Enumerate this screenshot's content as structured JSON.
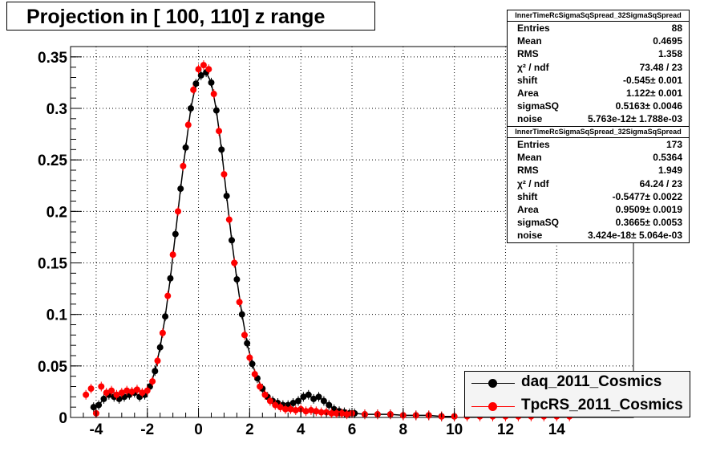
{
  "title": "Projection in [ 100, 110] z range",
  "chart_data": {
    "type": "scatter",
    "xlim": [
      -5,
      17
    ],
    "ylim": [
      0,
      0.36
    ],
    "grid": true,
    "x_ticks": [
      -4,
      -2,
      0,
      2,
      4,
      6,
      8,
      10,
      12,
      14
    ],
    "x_tick_labels": [
      "-4",
      "-2",
      "0",
      "2",
      "4",
      "6",
      "8",
      "10",
      "12",
      "14"
    ],
    "y_ticks": [
      0,
      0.05,
      0.1,
      0.15,
      0.2,
      0.25,
      0.3,
      0.35
    ],
    "y_tick_labels": [
      "0",
      "0.05",
      "0.1",
      "0.15",
      "0.2",
      "0.25",
      "0.3",
      "0.35"
    ],
    "legend_position": "bottom-right",
    "series": [
      {
        "name": "daq_2011_Cosmics",
        "color": "#000000",
        "x": [
          -4.1,
          -3.9,
          -3.7,
          -3.5,
          -3.3,
          -3.1,
          -2.9,
          -2.7,
          -2.5,
          -2.3,
          -2.1,
          -1.9,
          -1.7,
          -1.5,
          -1.3,
          -1.1,
          -0.9,
          -0.7,
          -0.5,
          -0.3,
          -0.1,
          0.1,
          0.3,
          0.5,
          0.7,
          0.9,
          1.1,
          1.3,
          1.5,
          1.7,
          1.9,
          2.1,
          2.3,
          2.5,
          2.7,
          2.9,
          3.1,
          3.3,
          3.5,
          3.7,
          3.9,
          4.1,
          4.3,
          4.5,
          4.7,
          4.9,
          5.1,
          5.3,
          5.5,
          5.7,
          5.9,
          6.1,
          6.5,
          7.0,
          7.5,
          8.0,
          8.5,
          9.0,
          9.5,
          10.0
        ],
        "y": [
          0.01,
          0.012,
          0.018,
          0.022,
          0.02,
          0.018,
          0.02,
          0.022,
          0.024,
          0.02,
          0.022,
          0.03,
          0.045,
          0.068,
          0.098,
          0.135,
          0.178,
          0.222,
          0.262,
          0.3,
          0.324,
          0.332,
          0.335,
          0.325,
          0.298,
          0.26,
          0.215,
          0.172,
          0.134,
          0.1,
          0.072,
          0.052,
          0.038,
          0.028,
          0.02,
          0.016,
          0.014,
          0.012,
          0.012,
          0.014,
          0.016,
          0.02,
          0.022,
          0.018,
          0.02,
          0.016,
          0.012,
          0.008,
          0.006,
          0.005,
          0.004,
          0.004,
          0.003,
          0.003,
          0.003,
          0.002,
          0.002,
          0.002,
          0.001,
          0.001
        ]
      },
      {
        "name": "TpcRS_2011_Cosmics",
        "color": "#ff0000",
        "x": [
          -4.4,
          -4.2,
          -4.0,
          -3.8,
          -3.6,
          -3.4,
          -3.2,
          -3.0,
          -2.8,
          -2.6,
          -2.4,
          -2.2,
          -2.0,
          -1.8,
          -1.6,
          -1.4,
          -1.2,
          -1.0,
          -0.8,
          -0.6,
          -0.4,
          -0.2,
          0.0,
          0.2,
          0.4,
          0.6,
          0.8,
          1.0,
          1.2,
          1.4,
          1.6,
          1.8,
          2.0,
          2.2,
          2.4,
          2.6,
          2.8,
          3.0,
          3.2,
          3.4,
          3.6,
          3.8,
          4.0,
          4.2,
          4.4,
          4.6,
          4.8,
          5.0,
          5.2,
          5.4,
          5.6,
          5.8,
          6.0,
          6.5,
          7.0,
          7.5,
          8.0,
          8.5,
          9.0,
          9.5,
          10.0,
          10.5,
          11.0,
          11.5,
          12.0,
          12.5,
          13.0,
          13.5,
          14.0,
          14.5
        ],
        "y": [
          0.022,
          0.028,
          0.004,
          0.03,
          0.024,
          0.026,
          0.022,
          0.024,
          0.026,
          0.025,
          0.027,
          0.024,
          0.026,
          0.035,
          0.055,
          0.082,
          0.118,
          0.158,
          0.2,
          0.244,
          0.284,
          0.318,
          0.338,
          0.342,
          0.338,
          0.314,
          0.278,
          0.236,
          0.192,
          0.15,
          0.112,
          0.08,
          0.058,
          0.042,
          0.03,
          0.022,
          0.016,
          0.012,
          0.01,
          0.008,
          0.008,
          0.007,
          0.008,
          0.006,
          0.007,
          0.006,
          0.005,
          0.005,
          0.004,
          0.004,
          0.004,
          0.003,
          0.004,
          0.003,
          0.003,
          0.003,
          0.002,
          0.002,
          0.002,
          0.001,
          0.001,
          0.001,
          0.001,
          0.001,
          0.001,
          0.001,
          0.001,
          0.001,
          0.001,
          0.001
        ]
      }
    ]
  },
  "stats": [
    {
      "name": "InnerTimeRcSigmaSqSpread_32SigmaSqSpread",
      "rows": [
        {
          "label": "Entries",
          "value": "88"
        },
        {
          "label": "Mean",
          "value": "0.4695"
        },
        {
          "label": "RMS",
          "value": "1.358"
        },
        {
          "label": "χ² / ndf",
          "value": "73.48 / 23"
        },
        {
          "label": "shift",
          "value": "-0.545± 0.001"
        },
        {
          "label": "Area",
          "value": "1.122± 0.001"
        },
        {
          "label": "sigmaSQ",
          "value": "0.5163± 0.0046"
        },
        {
          "label": "noise",
          "value": "5.763e-12± 1.788e-03"
        }
      ]
    },
    {
      "name": "InnerTimeRcSigmaSqSpread_32SigmaSqSpread",
      "rows": [
        {
          "label": "Entries",
          "value": "173"
        },
        {
          "label": "Mean",
          "value": "0.5364"
        },
        {
          "label": "RMS",
          "value": "1.949"
        },
        {
          "label": "χ² / ndf",
          "value": "64.24 / 23"
        },
        {
          "label": "shift",
          "value": "-0.5477± 0.0022"
        },
        {
          "label": "Area",
          "value": "0.9509± 0.0019"
        },
        {
          "label": "sigmaSQ",
          "value": "0.3665± 0.0053"
        },
        {
          "label": "noise",
          "value": "3.424e-18± 5.064e-03"
        }
      ]
    }
  ],
  "legend": [
    {
      "label": "daq_2011_Cosmics",
      "color": "#000000"
    },
    {
      "label": "TpcRS_2011_Cosmics",
      "color": "#ff0000"
    }
  ]
}
